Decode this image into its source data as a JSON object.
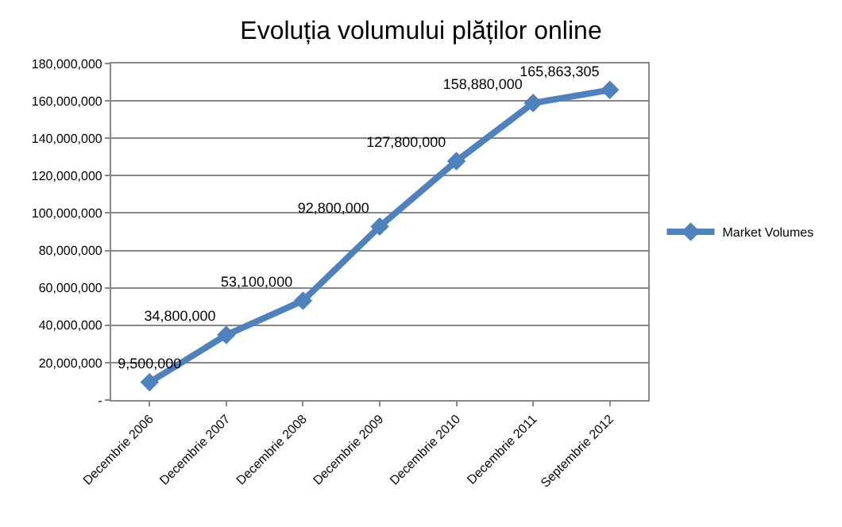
{
  "chart_data": {
    "type": "line",
    "title": "Evoluția volumului plăților online",
    "categories": [
      "Decembrie 2006",
      "Decembrie 2007",
      "Decembrie 2008",
      "Decembrie 2009",
      "Decembrie 2010",
      "Decembrie 2011",
      "Septembrie 2012"
    ],
    "series": [
      {
        "name": "Market Volumes",
        "color": "#4f81bd",
        "values": [
          9500000,
          34800000,
          53100000,
          92800000,
          127800000,
          158880000,
          165863305
        ],
        "value_labels": [
          "9,500,000",
          "34,800,000",
          "53,100,000",
          "92,800,000",
          "127,800,000",
          "158,880,000",
          "165,863,305"
        ]
      }
    ],
    "ylim": [
      0,
      180000000
    ],
    "yticks": [
      {
        "value": 0,
        "label": "-"
      },
      {
        "value": 20000000,
        "label": "20,000,000"
      },
      {
        "value": 40000000,
        "label": "40,000,000"
      },
      {
        "value": 60000000,
        "label": "60,000,000"
      },
      {
        "value": 80000000,
        "label": "80,000,000"
      },
      {
        "value": 100000000,
        "label": "100,000,000"
      },
      {
        "value": 120000000,
        "label": "120,000,000"
      },
      {
        "value": 140000000,
        "label": "140,000,000"
      },
      {
        "value": 160000000,
        "label": "160,000,000"
      },
      {
        "value": 180000000,
        "label": "180,000,000"
      }
    ],
    "grid": "y",
    "legend": "right",
    "marker": "diamond",
    "line_style": "solid"
  }
}
